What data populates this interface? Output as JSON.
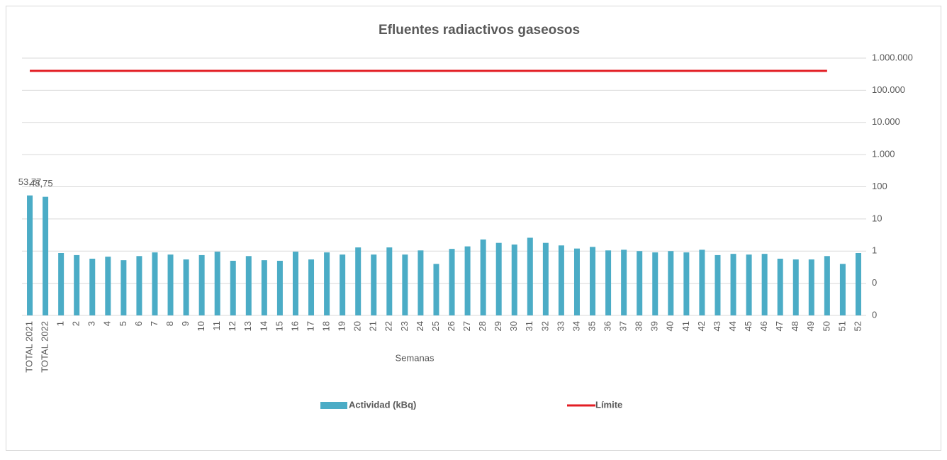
{
  "chart_data": {
    "type": "bar",
    "title": "Efluentes radiactivos gaseosos",
    "xlabel": "Semanas",
    "categories": [
      "TOTAL 2021",
      "TOTAL 2022",
      "1",
      "2",
      "3",
      "4",
      "5",
      "6",
      "7",
      "8",
      "9",
      "10",
      "11",
      "12",
      "13",
      "14",
      "15",
      "16",
      "17",
      "18",
      "19",
      "20",
      "21",
      "22",
      "23",
      "24",
      "25",
      "26",
      "27",
      "28",
      "29",
      "30",
      "31",
      "32",
      "33",
      "34",
      "35",
      "36",
      "37",
      "38",
      "39",
      "40",
      "41",
      "42",
      "43",
      "44",
      "45",
      "46",
      "47",
      "48",
      "49",
      "50",
      "51",
      "52"
    ],
    "series": [
      {
        "name": "Actividad (kBq)",
        "type": "bar",
        "color": "#4bacc6",
        "values": [
          53.77,
          48.75,
          0.87,
          0.75,
          0.58,
          0.67,
          0.52,
          0.7,
          0.91,
          0.78,
          0.55,
          0.75,
          0.96,
          0.5,
          0.7,
          0.52,
          0.5,
          0.96,
          0.55,
          0.91,
          0.78,
          1.3,
          0.78,
          1.3,
          0.78,
          1.05,
          0.4,
          1.17,
          1.4,
          2.3,
          1.8,
          1.6,
          2.6,
          1.8,
          1.5,
          1.2,
          1.35,
          1.05,
          1.1,
          1.0,
          0.91,
          1.0,
          0.91,
          1.1,
          0.75,
          0.82,
          0.78,
          0.82,
          0.58,
          0.55,
          0.55,
          0.7,
          0.4,
          0.87
        ],
        "value_labels": [
          "53,77",
          "48,75",
          null,
          null,
          null,
          null,
          null,
          null,
          null,
          null,
          null,
          null,
          null,
          null,
          null,
          null,
          null,
          null,
          null,
          null,
          null,
          null,
          null,
          null,
          null,
          null,
          null,
          null,
          null,
          null,
          null,
          null,
          null,
          null,
          null,
          null,
          null,
          null,
          null,
          null,
          null,
          null,
          null,
          null,
          null,
          null,
          null,
          null,
          null,
          null,
          null,
          null,
          null,
          null
        ]
      },
      {
        "name": "Límite",
        "type": "line",
        "color": "#e31e24",
        "values": [
          400000,
          400000,
          400000,
          400000,
          400000,
          400000,
          400000,
          400000,
          400000,
          400000,
          400000,
          400000,
          400000,
          400000,
          400000,
          400000,
          400000,
          400000,
          400000,
          400000,
          400000,
          400000,
          400000,
          400000,
          400000,
          400000,
          400000,
          400000,
          400000,
          400000,
          400000,
          400000,
          400000,
          400000,
          400000,
          400000,
          400000,
          400000,
          400000,
          400000,
          400000,
          400000,
          400000,
          400000,
          400000,
          400000,
          400000,
          400000,
          400000,
          400000,
          400000,
          400000,
          null,
          null
        ]
      }
    ],
    "log_scale": true,
    "ylim": [
      0.01,
      1000000
    ],
    "yticks": [
      {
        "value": 0.01,
        "label": "0"
      },
      {
        "value": 0.1,
        "label": "0"
      },
      1,
      10,
      100,
      {
        "value": 1000,
        "label": "1.000"
      },
      {
        "value": 10000,
        "label": "10.000"
      },
      {
        "value": 100000,
        "label": "100.000"
      },
      {
        "value": 1000000,
        "label": "1.000.000"
      }
    ],
    "grid": true,
    "legend": "bottom"
  }
}
